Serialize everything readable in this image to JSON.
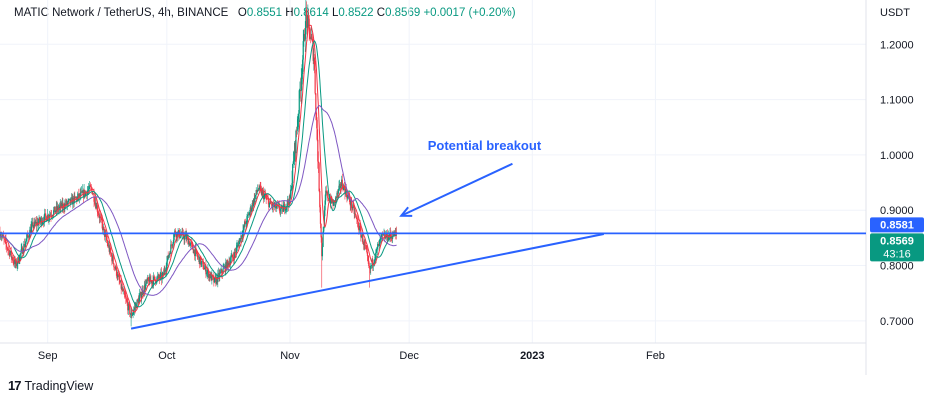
{
  "header": {
    "symbol": "MATIC Network / TetherUS, 4h, BINANCE",
    "open_label": "O",
    "open": "0.8551",
    "high_label": "H",
    "high": "0.8614",
    "low_label": "L",
    "low": "0.8522",
    "close_label": "C",
    "close": "0.8569",
    "change": "+0.0017 (+0.20%)"
  },
  "chart_data": {
    "type": "candlestick",
    "currency_label": "USDT",
    "ylim": [
      0.66,
      1.28
    ],
    "y_ticks": [
      "1.2000",
      "1.1000",
      "1.0000",
      "0.9000",
      "0.8000",
      "0.7000"
    ],
    "x_ticks": [
      "Sep",
      "Oct",
      "Nov",
      "Dec",
      "2023",
      "Feb"
    ],
    "x_tick_dates": [
      "2022-09-01",
      "2022-10-01",
      "2022-11-01",
      "2022-12-01",
      "2023-01-01",
      "2023-02-01"
    ],
    "xlim": [
      "2022-08-20",
      "2023-03-26"
    ],
    "price_path": [
      [
        "2022-08-20",
        0.86
      ],
      [
        "2022-08-24",
        0.8
      ],
      [
        "2022-08-28",
        0.87
      ],
      [
        "2022-09-03",
        0.9
      ],
      [
        "2022-09-08",
        0.92
      ],
      [
        "2022-09-12",
        0.94
      ],
      [
        "2022-09-16",
        0.84
      ],
      [
        "2022-09-20",
        0.75
      ],
      [
        "2022-09-22",
        0.71
      ],
      [
        "2022-09-26",
        0.77
      ],
      [
        "2022-09-30",
        0.78
      ],
      [
        "2022-10-03",
        0.86
      ],
      [
        "2022-10-06",
        0.85
      ],
      [
        "2022-10-10",
        0.8
      ],
      [
        "2022-10-13",
        0.77
      ],
      [
        "2022-10-18",
        0.82
      ],
      [
        "2022-10-21",
        0.88
      ],
      [
        "2022-10-24",
        0.94
      ],
      [
        "2022-10-27",
        0.91
      ],
      [
        "2022-10-30",
        0.9
      ],
      [
        "2022-11-01",
        0.92
      ],
      [
        "2022-11-03",
        1.07
      ],
      [
        "2022-11-05",
        1.25
      ],
      [
        "2022-11-06",
        1.22
      ],
      [
        "2022-11-07",
        1.18
      ],
      [
        "2022-11-08",
        1.0
      ],
      [
        "2022-11-09",
        0.82
      ],
      [
        "2022-11-10",
        0.93
      ],
      [
        "2022-11-12",
        0.91
      ],
      [
        "2022-11-14",
        0.95
      ],
      [
        "2022-11-17",
        0.9
      ],
      [
        "2022-11-20",
        0.83
      ],
      [
        "2022-11-21",
        0.79
      ],
      [
        "2022-11-24",
        0.85
      ],
      [
        "2022-11-28",
        0.857
      ]
    ],
    "spikes": [
      {
        "date": "2022-11-05",
        "high": 1.28
      },
      {
        "date": "2022-11-09",
        "low": 0.76
      },
      {
        "date": "2022-11-21",
        "low": 0.76
      },
      {
        "date": "2022-09-22",
        "low": 0.69
      }
    ],
    "ma_fast_color": "#f23645",
    "ma_mid_color": "#089981",
    "ma_slow_color": "#7e57c2",
    "up_color": "#089981",
    "down_color": "#f23645",
    "horizontal_line": {
      "price": 0.8581,
      "color": "#2962ff"
    },
    "trendline": {
      "start": [
        "2022-09-22",
        0.686
      ],
      "end": [
        "2023-01-19",
        0.857
      ],
      "color": "#2962ff"
    },
    "annotation": {
      "text": "Potential breakout",
      "color": "#2962ff",
      "arrow_from": [
        "2022-12-27",
        0.984
      ],
      "arrow_to": [
        "2022-11-29",
        0.89
      ]
    },
    "price_labels": [
      {
        "value": "0.8581",
        "color": "#2962ff"
      },
      {
        "value": "0.8569",
        "countdown": "43:16",
        "color": "#089981"
      }
    ]
  },
  "footer": {
    "brand": "TradingView"
  }
}
